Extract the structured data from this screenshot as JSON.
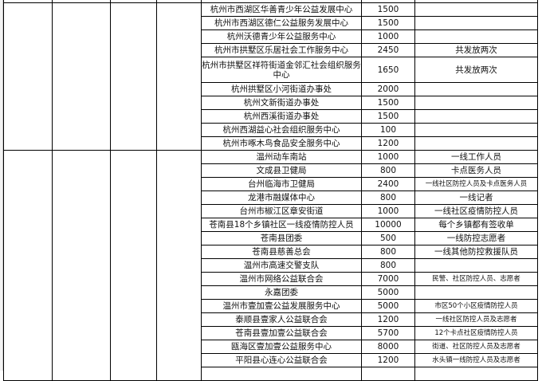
{
  "groups": [
    {
      "rows": [
        {
          "name": "杭州市西湖区华善青少年公益发展中心",
          "amount": "1500",
          "note": ""
        },
        {
          "name": "杭州市西湖区德仁公益服务发展中心",
          "amount": "1500",
          "note": ""
        },
        {
          "name": "杭州沃德青少年公益服务中心",
          "amount": "1000",
          "note": ""
        },
        {
          "name": "杭州市拱墅区乐居社会工作服务中心",
          "amount": "2450",
          "note": "共发放两次"
        },
        {
          "name": "杭州市拱墅区祥符街道金邻汇社会组织服务中心",
          "amount": "1650",
          "note": "共发放两次"
        },
        {
          "name": "杭州拱墅区小河街道办事处",
          "amount": "2000",
          "note": ""
        },
        {
          "name": "杭州文新街道办事处",
          "amount": "1500",
          "note": ""
        },
        {
          "name": "杭州西溪街道办事处",
          "amount": "1500",
          "note": ""
        },
        {
          "name": "杭州西湖益心社会组织服务中心",
          "amount": "100",
          "note": ""
        },
        {
          "name": "杭州市啄木鸟食品安全服务中心",
          "amount": "1200",
          "note": ""
        }
      ]
    },
    {
      "rows": [
        {
          "name": "温州动车南站",
          "amount": "1000",
          "note": "一线工作人员"
        },
        {
          "name": "文成县卫健局",
          "amount": "800",
          "note": "卡点医务人员"
        },
        {
          "name": "台州临海市卫健局",
          "amount": "2400",
          "note": "一线社区防控人员及卡点医务人员"
        },
        {
          "name": "龙港市融媒体中心",
          "amount": "800",
          "note": "一线记者"
        },
        {
          "name": "台州市椒江区章安街道",
          "amount": "1000",
          "note": "一线社区疫情防控人员"
        },
        {
          "name": "苍南县18个乡镇社区一线疫情防控人员",
          "amount": "10000",
          "note": "每个乡镇都有签收单"
        },
        {
          "name": "苍南县团委",
          "amount": "500",
          "note": "一线防控志愿者"
        },
        {
          "name": "苍南县慈善总会",
          "amount": "800",
          "note": "一线其他防控救援队员"
        },
        {
          "name": "温州市高速交警支队",
          "amount": "800",
          "note": ""
        },
        {
          "name": "温州市网络公益联合会",
          "amount": "7000",
          "note": "民警、社区防控人员、志愿者"
        },
        {
          "name": "永嘉团委",
          "amount": "5000",
          "note": ""
        },
        {
          "name": "温州市壹加壹公益发展服务中心",
          "amount": "5000",
          "note": "市区50个小区疫情防控人员"
        },
        {
          "name": "泰顺县壹家人公益联合会",
          "amount": "1200",
          "note": "一线社区防控人员及志愿者"
        },
        {
          "name": "苍南县壹加壹公益联合会",
          "amount": "5700",
          "note": "12个卡点社区疫情防控人员"
        },
        {
          "name": "瓯海区壹加壹公益服务中心",
          "amount": "8000",
          "note": "街道、社区防控人员及志愿者"
        },
        {
          "name": "平阳县心连心公益联合会",
          "amount": "1200",
          "note": "水头镇一线防控人员及志愿者"
        }
      ]
    }
  ]
}
